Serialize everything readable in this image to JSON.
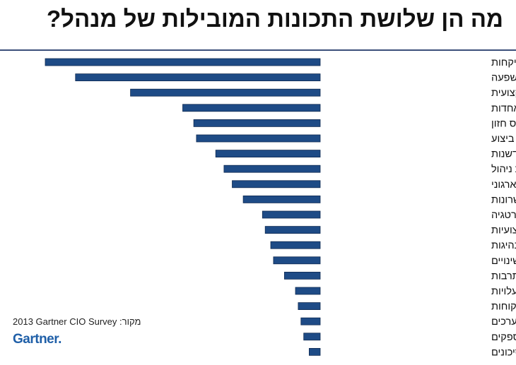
{
  "title": "מה הן שלושת התכונות המובילות של מנהל?",
  "source": {
    "prefix": "מקור:",
    "text": "2013 Gartner CIO Survey"
  },
  "logo": {
    "text": "Gartner",
    "dot": "."
  },
  "colors": {
    "bar": "#1e4b86",
    "bar_edge": "#0f2a52",
    "rule": "#3b4f7a",
    "logo": "#1f5fa8"
  },
  "chart_data": {
    "type": "bar",
    "orientation": "horizontal",
    "title": "מה הן שלושת התכונות המובילות של מנהל?",
    "categories": [
      "ידע עסקי ופיקחות",
      "תקשורות והשפעה",
      "התנהגות אישית ומקצועית",
      "בניית יחסים ואחדות",
      "ביסוס חזון",
      "מיומנויות ביצוע",
      "חדשנות",
      "מיומנויות ניהול",
      "ארגוני",
      "מושך כישרונות",
      "אסטרטגיה",
      "מקצועיות",
      "מנהיגות",
      "הובלת שינויים",
      "תרבות",
      "ניהול עלויות",
      "ממוקד לקוחות",
      "ממוקד ערכים",
      "ניהול קשרי ספקים",
      "ניהול סיכונים"
    ],
    "values": [
      100,
      89,
      69,
      50,
      46,
      45,
      38,
      35,
      32,
      28,
      21,
      20,
      18,
      17,
      13,
      9,
      8,
      7,
      6,
      4
    ],
    "xlim": [
      0,
      100
    ],
    "xlabel": "",
    "ylabel": "",
    "grid": false,
    "legend": "none"
  }
}
